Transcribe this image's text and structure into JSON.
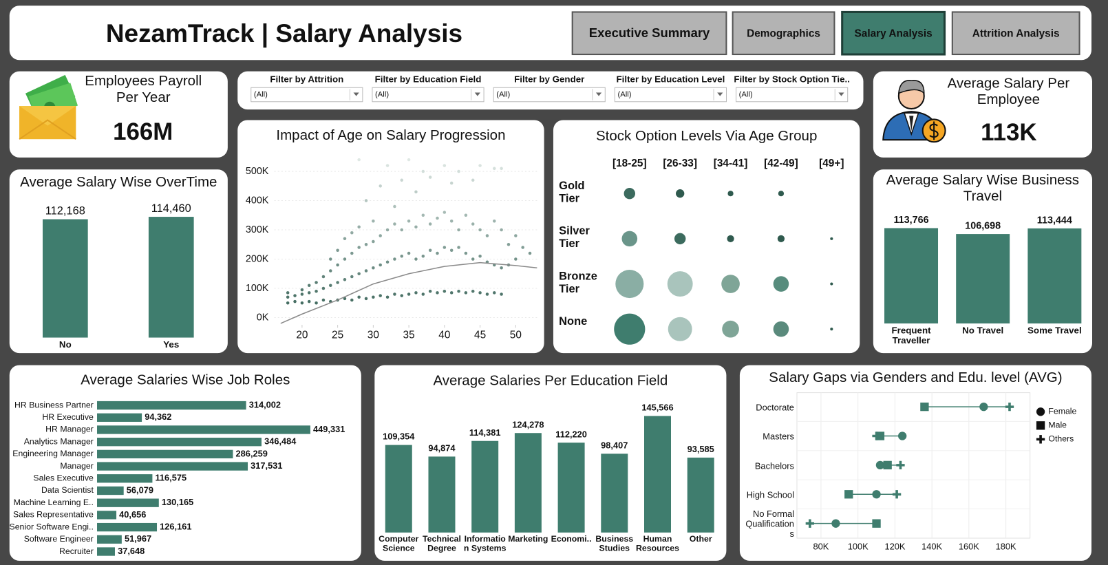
{
  "header": {
    "title": "NezamTrack | Salary Analysis"
  },
  "nav": {
    "items": [
      "Executive Summary",
      "Demographics",
      "Salary Analysis",
      "Attrition Analysis"
    ],
    "active": 2
  },
  "kpis": [
    {
      "title": "Employees Payroll Per Year",
      "value": "166M"
    },
    {
      "title": "Average Salary Per Employee",
      "value": "113K"
    }
  ],
  "filters": [
    {
      "label": "Filter by Attrition",
      "value": "(All)"
    },
    {
      "label": "Filter by Education Field",
      "value": "(All)"
    },
    {
      "label": "Filter by Gender",
      "value": "(All)"
    },
    {
      "label": "Filter by Education Level",
      "value": "(All)"
    },
    {
      "label": "Filter by Stock Option Tie..",
      "value": "(All)"
    }
  ],
  "chart_data": [
    {
      "type": "bar",
      "title": "Average Salary Wise OverTime",
      "categories": [
        "No",
        "Yes"
      ],
      "values": [
        112168,
        114460
      ],
      "value_labels": [
        "112,168",
        "114,460"
      ],
      "color": "#3f7d6e"
    },
    {
      "type": "scatter",
      "title": "Impact of Age on Salary Progression",
      "x": [
        18,
        18,
        18,
        19,
        19,
        20,
        20,
        20,
        21,
        21,
        21,
        22,
        22,
        22,
        23,
        23,
        23,
        24,
        24,
        24,
        24,
        25,
        25,
        25,
        25,
        26,
        26,
        26,
        26,
        27,
        27,
        27,
        27,
        28,
        28,
        28,
        28,
        28,
        29,
        29,
        29,
        29,
        30,
        30,
        30,
        30,
        31,
        31,
        31,
        31,
        32,
        32,
        32,
        32,
        33,
        33,
        33,
        33,
        34,
        34,
        34,
        34,
        35,
        35,
        35,
        35,
        36,
        36,
        36,
        36,
        37,
        37,
        37,
        37,
        38,
        38,
        38,
        38,
        39,
        39,
        39,
        40,
        40,
        40,
        40,
        41,
        41,
        41,
        41,
        42,
        42,
        42,
        42,
        43,
        43,
        43,
        44,
        44,
        44,
        44,
        45,
        45,
        45,
        45,
        46,
        46,
        46,
        47,
        47,
        47,
        47,
        48,
        48,
        48,
        48,
        49,
        49,
        50,
        50,
        51,
        52
      ],
      "values": [
        50000,
        70000,
        85000,
        55000,
        75000,
        50000,
        80000,
        95000,
        55000,
        85000,
        110000,
        50000,
        90000,
        120000,
        60000,
        100000,
        140000,
        55000,
        110000,
        160000,
        200000,
        60000,
        120000,
        180000,
        230000,
        65000,
        130000,
        200000,
        270000,
        60000,
        140000,
        220000,
        290000,
        70000,
        150000,
        240000,
        310000,
        540000,
        65000,
        160000,
        250000,
        400000,
        70000,
        170000,
        260000,
        330000,
        75000,
        180000,
        280000,
        450000,
        70000,
        190000,
        300000,
        520000,
        80000,
        200000,
        320000,
        380000,
        75000,
        210000,
        300000,
        470000,
        80000,
        220000,
        330000,
        540000,
        85000,
        200000,
        310000,
        430000,
        80000,
        210000,
        350000,
        500000,
        90000,
        230000,
        320000,
        480000,
        85000,
        220000,
        340000,
        90000,
        240000,
        360000,
        520000,
        85000,
        230000,
        330000,
        460000,
        90000,
        240000,
        300000,
        500000,
        85000,
        220000,
        350000,
        90000,
        200000,
        320000,
        470000,
        85000,
        210000,
        300000,
        520000,
        80000,
        190000,
        280000,
        85000,
        180000,
        330000,
        510000,
        80000,
        170000,
        300000,
        510000,
        180000,
        250000,
        200000,
        280000,
        240000,
        220000
      ],
      "trend": {
        "x": [
          17,
          20,
          25,
          30,
          35,
          40,
          45,
          50,
          53
        ],
        "values": [
          -20000,
          12000,
          60000,
          115000,
          150000,
          175000,
          188000,
          178000,
          170000
        ],
        "color": "#8a8a8a"
      },
      "colors": [
        "#2e5b4f",
        "#e2eae7"
      ],
      "xlim": [
        17,
        53
      ],
      "ylim": [
        -25000,
        550000
      ],
      "xticks": [
        20,
        25,
        30,
        35,
        40,
        45,
        50
      ],
      "yticks": [
        {
          "value": 0,
          "label": "0K"
        },
        {
          "value": 100000,
          "label": "100K"
        },
        {
          "value": 200000,
          "label": "200K"
        },
        {
          "value": 300000,
          "label": "300K"
        },
        {
          "value": 400000,
          "label": "400K"
        },
        {
          "value": 500000,
          "label": "500K"
        }
      ],
      "grid": true
    },
    {
      "type": "bubble",
      "title": "Stock Option Levels Via Age Group",
      "columns": [
        "[18-25]",
        "[26-33]",
        "[34-41]",
        "[42-49]",
        "[49+]"
      ],
      "rows": [
        "Gold Tier",
        "Silver Tier",
        "Bronze Tier",
        "None"
      ],
      "values": [
        [
          64,
          36,
          16,
          16,
          null
        ],
        [
          121,
          64,
          25,
          25,
          4
        ],
        [
          400,
          324,
          169,
          121,
          4
        ],
        [
          484,
          289,
          144,
          121,
          4
        ]
      ],
      "colors": [
        [
          "#3c6b5e",
          "#2f5a4e",
          "#2f5a4e",
          "#2f5a4e",
          "#2f5a4e"
        ],
        [
          "#6a958a",
          "#3c6b5e",
          "#2f5a4e",
          "#2f5a4e",
          "#2f5a4e"
        ],
        [
          "#8aaea4",
          "#a9c4bc",
          "#7fa597",
          "#578c7d",
          "#2f5a4e"
        ],
        [
          "#3f7d6e",
          "#a9c4bc",
          "#7fa597",
          "#5a8a7c",
          "#2f5a4e"
        ]
      ]
    },
    {
      "type": "bar",
      "title": "Average Salary Wise Business Travel",
      "categories": [
        "Frequent Traveller",
        "No Travel",
        "Some Travel"
      ],
      "values": [
        113766,
        106698,
        113444
      ],
      "value_labels": [
        "113,766",
        "106,698",
        "113,444"
      ],
      "color": "#3f7d6e"
    },
    {
      "type": "hbar",
      "title": "Average Salaries Wise Job Roles",
      "categories": [
        "HR Business Partner",
        "HR Executive",
        "HR Manager",
        "Analytics Manager",
        "Engineering Manager",
        "Manager",
        "Sales Executive",
        "Data Scientist",
        "Machine Learning E..",
        "Sales Representative",
        "Senior Software Engi..",
        "Software Engineer",
        "Recruiter"
      ],
      "values": [
        314002,
        94362,
        449331,
        346484,
        286259,
        317531,
        116575,
        56079,
        130165,
        40656,
        126161,
        51967,
        37648
      ],
      "value_labels": [
        "314,002",
        "94,362",
        "449,331",
        "346,484",
        "286,259",
        "317,531",
        "116,575",
        "56,079",
        "130,165",
        "40,656",
        "126,161",
        "51,967",
        "37,648"
      ],
      "color": "#3f7d6e"
    },
    {
      "type": "bar",
      "title": "Average Salaries Per Education Field",
      "categories": [
        "Computer Science",
        "Technical Degree",
        "Information Systems",
        "Marketing",
        "Economi..",
        "Business Studies",
        "Human Resources",
        "Other"
      ],
      "values": [
        109354,
        94874,
        114381,
        124278,
        112220,
        98407,
        145566,
        93585
      ],
      "value_labels": [
        "109,354",
        "94,874",
        "114,381",
        "124,278",
        "112,220",
        "98,407",
        "145,566",
        "93,585"
      ],
      "color": "#3f7d6e"
    },
    {
      "type": "dumbbell",
      "title": "Salary Gaps via Genders and Edu. level (AVG)",
      "categories": [
        "Doctorate",
        "Masters",
        "Bachelors",
        "High School",
        "No Formal Qualifications"
      ],
      "series": [
        {
          "name": "Female",
          "marker": "circle",
          "values": [
            168000,
            124000,
            112000,
            110000,
            88000
          ]
        },
        {
          "name": "Male",
          "marker": "square",
          "values": [
            136000,
            112000,
            116000,
            95000,
            110000
          ]
        },
        {
          "name": "Others",
          "marker": "plus",
          "values": [
            182000,
            110000,
            123000,
            121000,
            74000
          ]
        }
      ],
      "color": "#3f7d6e",
      "xlim": [
        67000,
        190000
      ],
      "xticks": [
        {
          "value": 80000,
          "label": "80K"
        },
        {
          "value": 100000,
          "label": "100K"
        },
        {
          "value": 120000,
          "label": "120K"
        },
        {
          "value": 140000,
          "label": "140K"
        },
        {
          "value": 160000,
          "label": "160K"
        },
        {
          "value": 180000,
          "label": "180K"
        }
      ],
      "grid": true,
      "legend": "right"
    }
  ]
}
